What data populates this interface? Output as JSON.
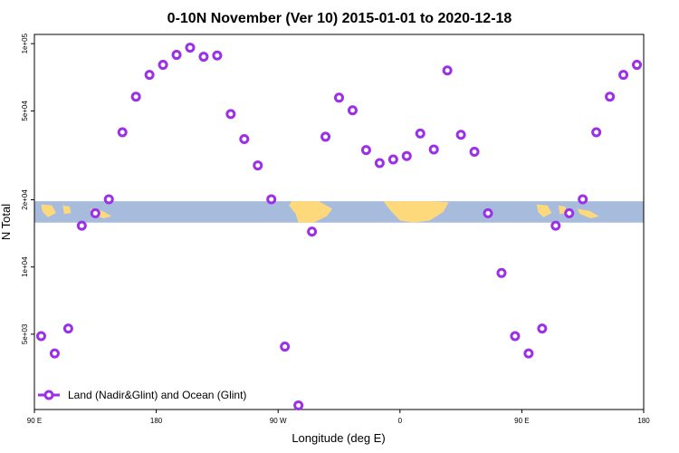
{
  "chart_data": {
    "type": "scatter",
    "title": "0-10N November (Ver 10)   2015-01-01 to 2020-12-18",
    "xlabel": "Longitude (deg E)",
    "ylabel": "N Total",
    "x_ticks": [
      {
        "value": 90,
        "label": "90 E"
      },
      {
        "value": 180,
        "label": "180"
      },
      {
        "value": 270,
        "label": "90 W"
      },
      {
        "value": 360,
        "label": "0"
      },
      {
        "value": 450,
        "label": "90 E"
      },
      {
        "value": 540,
        "label": "180"
      }
    ],
    "y_ticks": [
      {
        "value": 5000,
        "label": "5e+03"
      },
      {
        "value": 10000,
        "label": "1e+04"
      },
      {
        "value": 20000,
        "label": "2e+04"
      },
      {
        "value": 50000,
        "label": "5e+04"
      },
      {
        "value": 100000,
        "label": "1e+05"
      }
    ],
    "xlim": [
      90,
      540
    ],
    "ylim": [
      2300,
      110000
    ],
    "y_scale": "log",
    "grid": false,
    "legend_position": "bottom-left",
    "band": {
      "y_range": [
        15800,
        19700
      ],
      "ocean_color": "#a7bcdc",
      "land_color": "#fed97c"
    },
    "series": [
      {
        "name": "Land (Nadir&Glint) and Ocean (Glint)",
        "color": "#9b30e8",
        "x": [
          95,
          105,
          115,
          125,
          135,
          145,
          155,
          165,
          175,
          185,
          195,
          205,
          215,
          225,
          235,
          245,
          255,
          265,
          275,
          285,
          295,
          305,
          315,
          325,
          335,
          345,
          355,
          365,
          375,
          385,
          395,
          405,
          415,
          425,
          435,
          445,
          455,
          465,
          475,
          485,
          495,
          505,
          515,
          525,
          535
        ],
        "y": [
          4900,
          4100,
          5300,
          15300,
          17400,
          20100,
          40100,
          57900,
          72500,
          80400,
          89100,
          96000,
          87400,
          88500,
          48400,
          37400,
          28500,
          20100,
          4400,
          2400,
          14400,
          38300,
          57300,
          50300,
          33400,
          29200,
          30300,
          31400,
          39600,
          33600,
          75900,
          39100,
          32800,
          17400,
          9400,
          4900,
          4100,
          5300,
          15300,
          17400,
          20100,
          40100,
          57900,
          72500,
          80400
        ]
      }
    ]
  }
}
